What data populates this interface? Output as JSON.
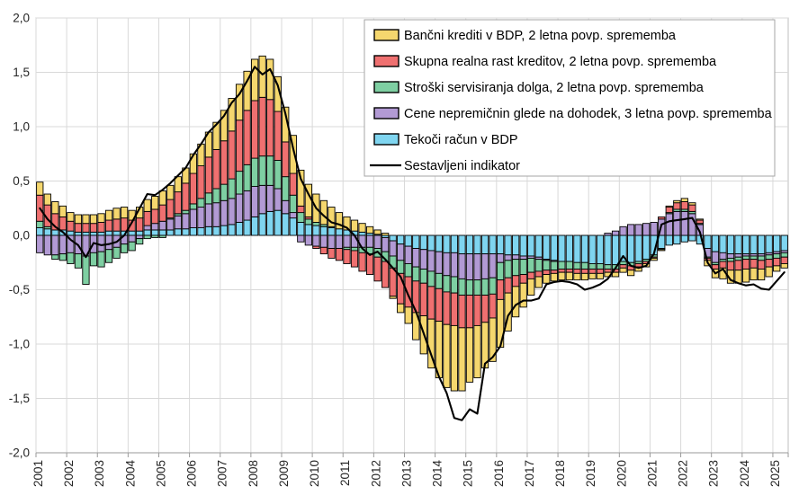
{
  "chart_data": {
    "type": "bar",
    "subtype": "stacked-bars-with-line",
    "title": "",
    "xlabel": "",
    "ylabel": "",
    "ylim": [
      -2.0,
      2.0
    ],
    "ytick_step": 0.5,
    "ytick_labels": [
      "2,0",
      "1,5",
      "1,0",
      "0,5",
      "0,0",
      "-0,5",
      "-1,0",
      "-1,5",
      "-2,0"
    ],
    "x_unit": "quarter",
    "n_points": 98,
    "year_labels": [
      "2001",
      "2002",
      "2003",
      "2004",
      "2005",
      "2006",
      "2007",
      "2008",
      "2009",
      "2010",
      "2011",
      "2012",
      "2013",
      "2014",
      "2015",
      "2016",
      "2017",
      "2018",
      "2019",
      "2020",
      "2021",
      "2022",
      "2023",
      "2024",
      "2025"
    ],
    "grid_color": "#d9d9d9",
    "axis_color": "#bfbfbf",
    "text_color": "#262626",
    "legend_position": "top-right-inside",
    "legend_border_color": "#a6a6a6",
    "stack_series": [
      {
        "name": "Tekoči račun v BDP",
        "color": "#7fd5f0",
        "values": [
          0.07,
          0.06,
          0.05,
          0.05,
          0.04,
          0.03,
          0.03,
          0.03,
          0.03,
          0.04,
          0.04,
          0.04,
          0.04,
          0.04,
          0.05,
          0.05,
          0.05,
          0.05,
          0.06,
          0.06,
          0.07,
          0.07,
          0.08,
          0.08,
          0.09,
          0.1,
          0.12,
          0.14,
          0.17,
          0.2,
          0.22,
          0.23,
          0.2,
          0.16,
          0.12,
          0.1,
          0.09,
          0.08,
          0.07,
          0.06,
          0.05,
          0.04,
          0.03,
          0.02,
          0.01,
          -0.02,
          -0.05,
          -0.08,
          -0.1,
          -0.12,
          -0.13,
          -0.14,
          -0.15,
          -0.16,
          -0.16,
          -0.17,
          -0.17,
          -0.17,
          -0.17,
          -0.17,
          -0.17,
          -0.18,
          -0.18,
          -0.19,
          -0.19,
          -0.2,
          -0.22,
          -0.23,
          -0.24,
          -0.24,
          -0.25,
          -0.25,
          -0.26,
          -0.26,
          -0.27,
          -0.27,
          -0.24,
          -0.25,
          -0.24,
          -0.22,
          -0.18,
          -0.12,
          -0.09,
          -0.08,
          -0.06,
          -0.05,
          -0.08,
          -0.12,
          -0.15,
          -0.16,
          -0.17,
          -0.17,
          -0.17,
          -0.17,
          -0.17,
          -0.16,
          -0.15,
          -0.14
        ]
      },
      {
        "name": "Cene nepremičnin glede na dohodek, 3 letna povp. sprememba",
        "color": "#b29ad4",
        "values": [
          -0.16,
          -0.18,
          -0.18,
          -0.17,
          -0.16,
          -0.17,
          -0.19,
          -0.16,
          -0.15,
          -0.13,
          -0.11,
          -0.08,
          -0.06,
          -0.03,
          0.04,
          0.06,
          0.08,
          0.1,
          0.12,
          0.14,
          0.17,
          0.19,
          0.21,
          0.22,
          0.23,
          0.24,
          0.26,
          0.27,
          0.28,
          0.26,
          0.24,
          0.2,
          0.12,
          0.05,
          -0.06,
          -0.09,
          -0.1,
          -0.11,
          -0.12,
          -0.12,
          -0.11,
          -0.11,
          -0.11,
          -0.11,
          -0.12,
          -0.13,
          -0.14,
          -0.15,
          -0.16,
          -0.17,
          -0.18,
          -0.19,
          -0.2,
          -0.21,
          -0.22,
          -0.23,
          -0.24,
          -0.24,
          -0.23,
          -0.22,
          -0.08,
          -0.05,
          -0.04,
          -0.03,
          -0.02,
          -0.02,
          -0.01,
          -0.01,
          0,
          0,
          0,
          0,
          0,
          0,
          0.02,
          0.04,
          0.08,
          0.1,
          0.1,
          0.11,
          0.12,
          0.15,
          0.2,
          0.22,
          0.22,
          0.2,
          0.1,
          -0.08,
          -0.1,
          -0.06,
          -0.04,
          -0.03,
          -0.02,
          -0.02,
          -0.02,
          -0.02,
          -0.02,
          -0.02
        ]
      },
      {
        "name": "Stroški servisiranja dolga, 2 letna povp. sprememba",
        "color": "#7ecfa2",
        "values": [
          0.06,
          0.02,
          -0.04,
          -0.06,
          -0.1,
          -0.13,
          -0.26,
          -0.12,
          -0.14,
          -0.12,
          -0.1,
          -0.08,
          -0.08,
          -0.05,
          -0.03,
          -0.02,
          -0.02,
          0.01,
          0.02,
          0.03,
          0.05,
          0.08,
          0.1,
          0.13,
          0.15,
          0.18,
          0.21,
          0.24,
          0.26,
          0.27,
          0.27,
          0.26,
          0.22,
          0.16,
          0.09,
          0.05,
          0.03,
          0.02,
          0.01,
          0,
          -0.02,
          -0.03,
          -0.05,
          -0.06,
          -0.08,
          -0.09,
          -0.11,
          -0.12,
          -0.12,
          -0.13,
          -0.13,
          -0.14,
          -0.14,
          -0.15,
          -0.15,
          -0.15,
          -0.14,
          -0.14,
          -0.15,
          -0.15,
          -0.16,
          -0.16,
          -0.15,
          -0.14,
          -0.13,
          -0.11,
          -0.09,
          -0.08,
          -0.07,
          -0.07,
          -0.06,
          -0.06,
          -0.05,
          -0.05,
          -0.04,
          -0.04,
          -0.03,
          -0.03,
          -0.02,
          -0.02,
          -0.02,
          -0.01,
          0.01,
          0.02,
          0.02,
          0.02,
          0.01,
          -0.01,
          -0.02,
          -0.02,
          -0.03,
          -0.03,
          -0.03,
          -0.03,
          -0.04,
          -0.04,
          -0.04,
          -0.04
        ]
      },
      {
        "name": "Skupna realna rast kreditov, 2 letna povp. sprememba",
        "color": "#ef7070",
        "values": [
          0.24,
          0.2,
          0.15,
          0.12,
          0.09,
          0.08,
          0.08,
          0.08,
          0.09,
          0.1,
          0.11,
          0.12,
          0.1,
          0.12,
          0.13,
          0.13,
          0.15,
          0.17,
          0.2,
          0.25,
          0.28,
          0.3,
          0.33,
          0.36,
          0.4,
          0.44,
          0.47,
          0.5,
          0.53,
          0.54,
          0.52,
          0.45,
          0.32,
          0.2,
          0.06,
          0.02,
          -0.02,
          -0.06,
          -0.09,
          -0.11,
          -0.13,
          -0.15,
          -0.17,
          -0.19,
          -0.22,
          -0.24,
          -0.26,
          -0.28,
          -0.28,
          -0.29,
          -0.3,
          -0.3,
          -0.3,
          -0.3,
          -0.3,
          -0.3,
          -0.3,
          -0.28,
          -0.25,
          -0.22,
          -0.18,
          -0.14,
          -0.1,
          -0.08,
          -0.06,
          -0.05,
          -0.04,
          -0.03,
          -0.03,
          -0.03,
          -0.04,
          -0.04,
          -0.04,
          -0.04,
          -0.03,
          -0.03,
          -0.03,
          -0.04,
          -0.03,
          -0.02,
          -0.01,
          0.02,
          0.05,
          0.06,
          0.07,
          0.06,
          0.03,
          -0.02,
          -0.04,
          -0.06,
          -0.08,
          -0.09,
          -0.09,
          -0.08,
          -0.08,
          -0.07,
          -0.07,
          -0.06
        ]
      },
      {
        "name": "Bančni krediti v BDP, 2 letna povp. sprememba",
        "color": "#f5d76e",
        "values": [
          0.12,
          0.1,
          0.11,
          0.1,
          0.08,
          0.08,
          0.08,
          0.08,
          0.08,
          0.09,
          0.1,
          0.1,
          0.09,
          0.1,
          0.11,
          0.12,
          0.13,
          0.13,
          0.14,
          0.14,
          0.18,
          0.2,
          0.23,
          0.25,
          0.28,
          0.3,
          0.33,
          0.36,
          0.38,
          0.38,
          0.37,
          0.32,
          0.32,
          0.35,
          0.33,
          0.3,
          0.26,
          0.22,
          0.18,
          0.15,
          0.12,
          0.1,
          0.08,
          0.06,
          0.04,
          0.02,
          -0.02,
          -0.08,
          -0.15,
          -0.25,
          -0.35,
          -0.45,
          -0.52,
          -0.58,
          -0.6,
          -0.58,
          -0.5,
          -0.48,
          -0.42,
          -0.4,
          -0.44,
          -0.35,
          -0.28,
          -0.22,
          -0.15,
          -0.1,
          -0.08,
          -0.07,
          -0.07,
          -0.07,
          -0.06,
          -0.06,
          -0.05,
          -0.05,
          -0.04,
          -0.04,
          -0.04,
          -0.05,
          -0.04,
          -0.03,
          -0.02,
          -0.01,
          0.01,
          0.02,
          0.03,
          0.02,
          0.01,
          -0.05,
          -0.08,
          -0.1,
          -0.12,
          -0.12,
          -0.12,
          -0.11,
          -0.1,
          -0.09,
          -0.05,
          -0.04
        ]
      }
    ],
    "line_series": {
      "name": "Sestavljeni indikator",
      "color": "#000000",
      "values": [
        0.25,
        0.15,
        0.08,
        0.03,
        -0.04,
        -0.09,
        -0.2,
        -0.07,
        -0.09,
        -0.08,
        -0.06,
        0,
        0.12,
        0.25,
        0.38,
        0.37,
        0.42,
        0.48,
        0.55,
        0.62,
        0.74,
        0.84,
        0.95,
        1.02,
        1.1,
        1.22,
        1.3,
        1.42,
        1.55,
        1.48,
        1.53,
        1.38,
        1.12,
        0.8,
        0.52,
        0.38,
        0.25,
        0.18,
        0.12,
        0.1,
        0.07,
        0,
        -0.12,
        -0.18,
        -0.15,
        -0.22,
        -0.3,
        -0.38,
        -0.55,
        -0.7,
        -0.9,
        -1.1,
        -1.3,
        -1.45,
        -1.68,
        -1.7,
        -1.6,
        -1.64,
        -1.18,
        -1.12,
        -1.02,
        -0.74,
        -0.64,
        -0.6,
        -0.6,
        -0.58,
        -0.45,
        -0.43,
        -0.42,
        -0.43,
        -0.45,
        -0.5,
        -0.48,
        -0.45,
        -0.4,
        -0.3,
        -0.19,
        -0.28,
        -0.3,
        -0.28,
        -0.17,
        0.1,
        0.13,
        0.14,
        0.15,
        0.16,
        0.03,
        -0.25,
        -0.35,
        -0.31,
        -0.41,
        -0.44,
        -0.46,
        -0.45,
        -0.49,
        -0.5,
        -0.42,
        -0.34
      ]
    },
    "legend_order": [
      4,
      3,
      2,
      1,
      0
    ],
    "bar_border_color": "#000000"
  }
}
